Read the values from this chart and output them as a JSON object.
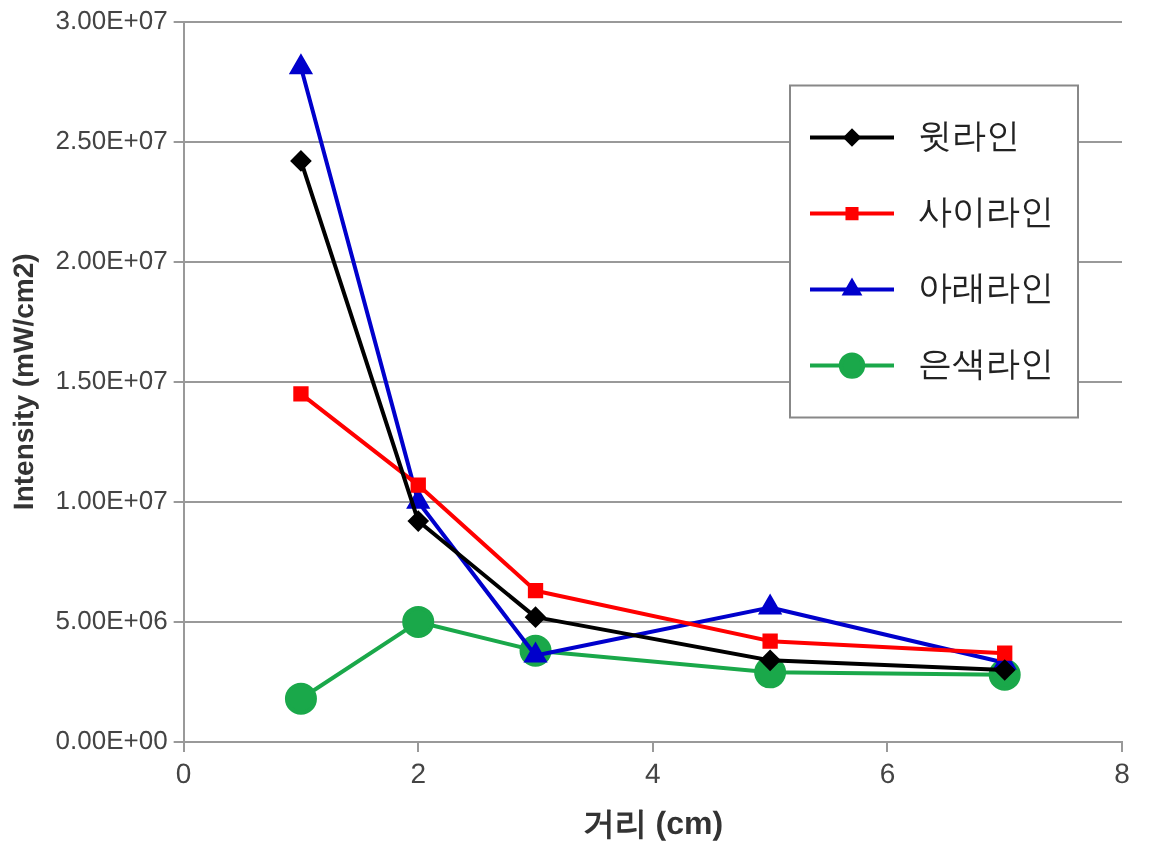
{
  "chart_data": {
    "type": "line",
    "xlabel": "거리 (cm)",
    "ylabel": "Intensity (mW/cm2)",
    "x": [
      1,
      2,
      3,
      5,
      7
    ],
    "series": [
      {
        "name": "윗라인",
        "color": "#000000",
        "marker": "diamond",
        "values": [
          24200000,
          9200000,
          5200000,
          3400000,
          3000000
        ]
      },
      {
        "name": "사이라인",
        "color": "#ff0000",
        "marker": "square",
        "values": [
          14500000,
          10700000,
          6300000,
          4200000,
          3700000
        ]
      },
      {
        "name": "아래라인",
        "color": "#0000cc",
        "marker": "triangle",
        "values": [
          28100000,
          10000000,
          3600000,
          5600000,
          3300000
        ]
      },
      {
        "name": "은색라인",
        "color": "#1aa84a",
        "marker": "circle",
        "values": [
          1800000,
          5000000,
          3800000,
          2900000,
          2800000
        ]
      }
    ],
    "xlim": [
      0,
      8
    ],
    "xticks": [
      0,
      2,
      4,
      6,
      8
    ],
    "ylim": [
      0,
      30000000
    ],
    "yticks": [
      {
        "value": 0,
        "label": "0.00E+00"
      },
      {
        "value": 5000000,
        "label": "5.00E+06"
      },
      {
        "value": 10000000,
        "label": "1.00E+07"
      },
      {
        "value": 15000000,
        "label": "1.50E+07"
      },
      {
        "value": 20000000,
        "label": "2.00E+07"
      },
      {
        "value": 25000000,
        "label": "2.50E+07"
      },
      {
        "value": 30000000,
        "label": "3.00E+07"
      }
    ],
    "grid": "y",
    "legend": "top right"
  }
}
